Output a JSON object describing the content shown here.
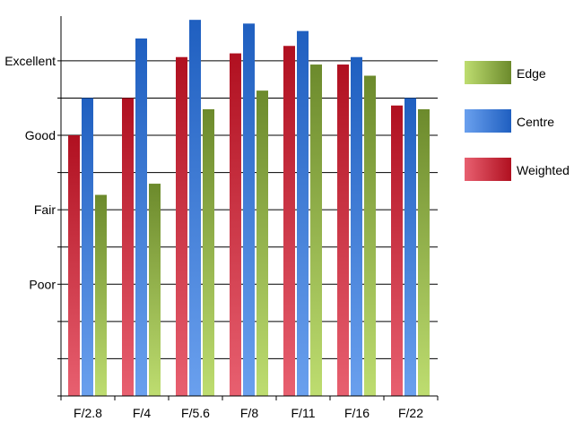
{
  "chart_data": {
    "type": "bar",
    "categories": [
      "F/2.8",
      "F/4",
      "F/5.6",
      "F/8",
      "F/11",
      "F/16",
      "F/22"
    ],
    "series": [
      {
        "name": "Weighted",
        "values": [
          3.0,
          3.5,
          4.05,
          4.1,
          4.2,
          3.95,
          3.4
        ],
        "color_light": "#e86070",
        "color_dark": "#b01020"
      },
      {
        "name": "Centre",
        "values": [
          3.5,
          4.3,
          4.55,
          4.5,
          4.4,
          4.05,
          3.5
        ],
        "color_light": "#6aa0ee",
        "color_dark": "#1f5fc0"
      },
      {
        "name": "Edge",
        "values": [
          2.2,
          2.35,
          3.35,
          3.6,
          3.95,
          3.8,
          3.35
        ],
        "color_light": "#bedd70",
        "color_dark": "#6c8a2c"
      }
    ],
    "y_tick_labels": [
      {
        "value": 1,
        "label": "Poor"
      },
      {
        "value": 2,
        "label": "Fair"
      },
      {
        "value": 3,
        "label": "Good"
      },
      {
        "value": 4,
        "label": "Excellent"
      }
    ],
    "ylim": [
      -0.5,
      4.6
    ],
    "gridlines": [
      -0.5,
      0,
      0.5,
      1,
      1.5,
      2,
      2.5,
      3,
      3.5,
      4
    ],
    "legend_order": [
      "Edge",
      "Centre",
      "Weighted"
    ],
    "legend_position": "right",
    "grid": true
  }
}
